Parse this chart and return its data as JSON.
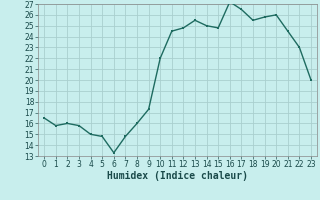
{
  "x": [
    0,
    1,
    2,
    3,
    4,
    5,
    6,
    7,
    8,
    9,
    10,
    11,
    12,
    13,
    14,
    15,
    16,
    17,
    18,
    19,
    20,
    21,
    22,
    23
  ],
  "y": [
    16.5,
    15.8,
    16.0,
    15.8,
    15.0,
    14.8,
    13.3,
    14.8,
    16.0,
    17.3,
    22.0,
    24.5,
    24.8,
    25.5,
    25.0,
    24.8,
    27.2,
    26.5,
    25.5,
    25.8,
    26.0,
    24.5,
    23.0,
    20.0
  ],
  "line_color": "#1e6b60",
  "marker_color": "#1e6b60",
  "bg_color": "#c8eeed",
  "grid_color": "#aacfcf",
  "xlabel": "Humidex (Indice chaleur)",
  "ylim": [
    13,
    27
  ],
  "xlim_min": -0.5,
  "xlim_max": 23.5,
  "yticks": [
    13,
    14,
    15,
    16,
    17,
    18,
    19,
    20,
    21,
    22,
    23,
    24,
    25,
    26,
    27
  ],
  "xticks": [
    0,
    1,
    2,
    3,
    4,
    5,
    6,
    7,
    8,
    9,
    10,
    11,
    12,
    13,
    14,
    15,
    16,
    17,
    18,
    19,
    20,
    21,
    22,
    23
  ],
  "tick_fontsize": 5.5,
  "label_fontsize": 7,
  "line_width": 1.0,
  "marker_size": 2.0
}
